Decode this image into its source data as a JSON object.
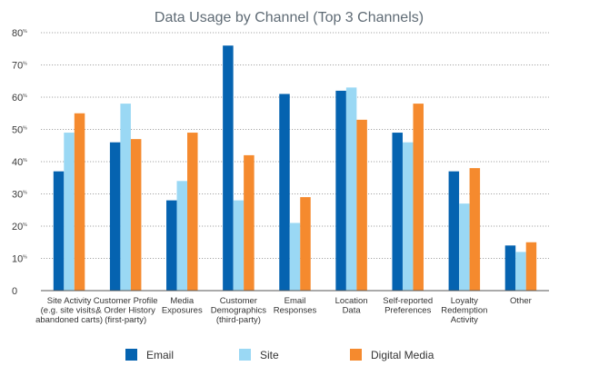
{
  "chart_data": {
    "type": "bar",
    "title": "Data Usage by Channel (Top 3 Channels)",
    "xlabel": "",
    "ylabel": "",
    "ylim": [
      0,
      80
    ],
    "yticks": [
      {
        "value": 0,
        "label": "0",
        "suffix": ""
      },
      {
        "value": 10,
        "label": "10",
        "suffix": "%"
      },
      {
        "value": 20,
        "label": "20",
        "suffix": "%"
      },
      {
        "value": 30,
        "label": "30",
        "suffix": "%"
      },
      {
        "value": 40,
        "label": "40",
        "suffix": "%"
      },
      {
        "value": 50,
        "label": "50",
        "suffix": "%"
      },
      {
        "value": 60,
        "label": "60",
        "suffix": "%"
      },
      {
        "value": 70,
        "label": "70",
        "suffix": "%"
      },
      {
        "value": 80,
        "label": "80",
        "suffix": "%"
      }
    ],
    "grid": true,
    "legend_position": "bottom",
    "categories": [
      [
        "Site Activity",
        "(e.g. site visits,",
        "abandoned carts)"
      ],
      [
        "Customer Profile",
        "& Order History",
        "(first-party)"
      ],
      [
        "Media",
        "Exposures"
      ],
      [
        "Customer",
        "Demographics",
        "(third-party)"
      ],
      [
        "Email",
        "Responses"
      ],
      [
        "Location",
        "Data"
      ],
      [
        "Self-reported",
        "Preferences"
      ],
      [
        "Loyalty",
        "Redemption",
        "Activity"
      ],
      [
        "Other"
      ]
    ],
    "series": [
      {
        "name": "Email",
        "color": "#0563b0",
        "values": [
          37,
          46,
          28,
          76,
          61,
          62,
          49,
          37,
          14
        ]
      },
      {
        "name": "Site",
        "color": "#9ad8f4",
        "values": [
          49,
          58,
          34,
          28,
          21,
          63,
          46,
          27,
          12
        ]
      },
      {
        "name": "Digital Media",
        "color": "#f58a2e",
        "values": [
          55,
          47,
          49,
          42,
          29,
          53,
          58,
          38,
          15
        ]
      }
    ]
  }
}
